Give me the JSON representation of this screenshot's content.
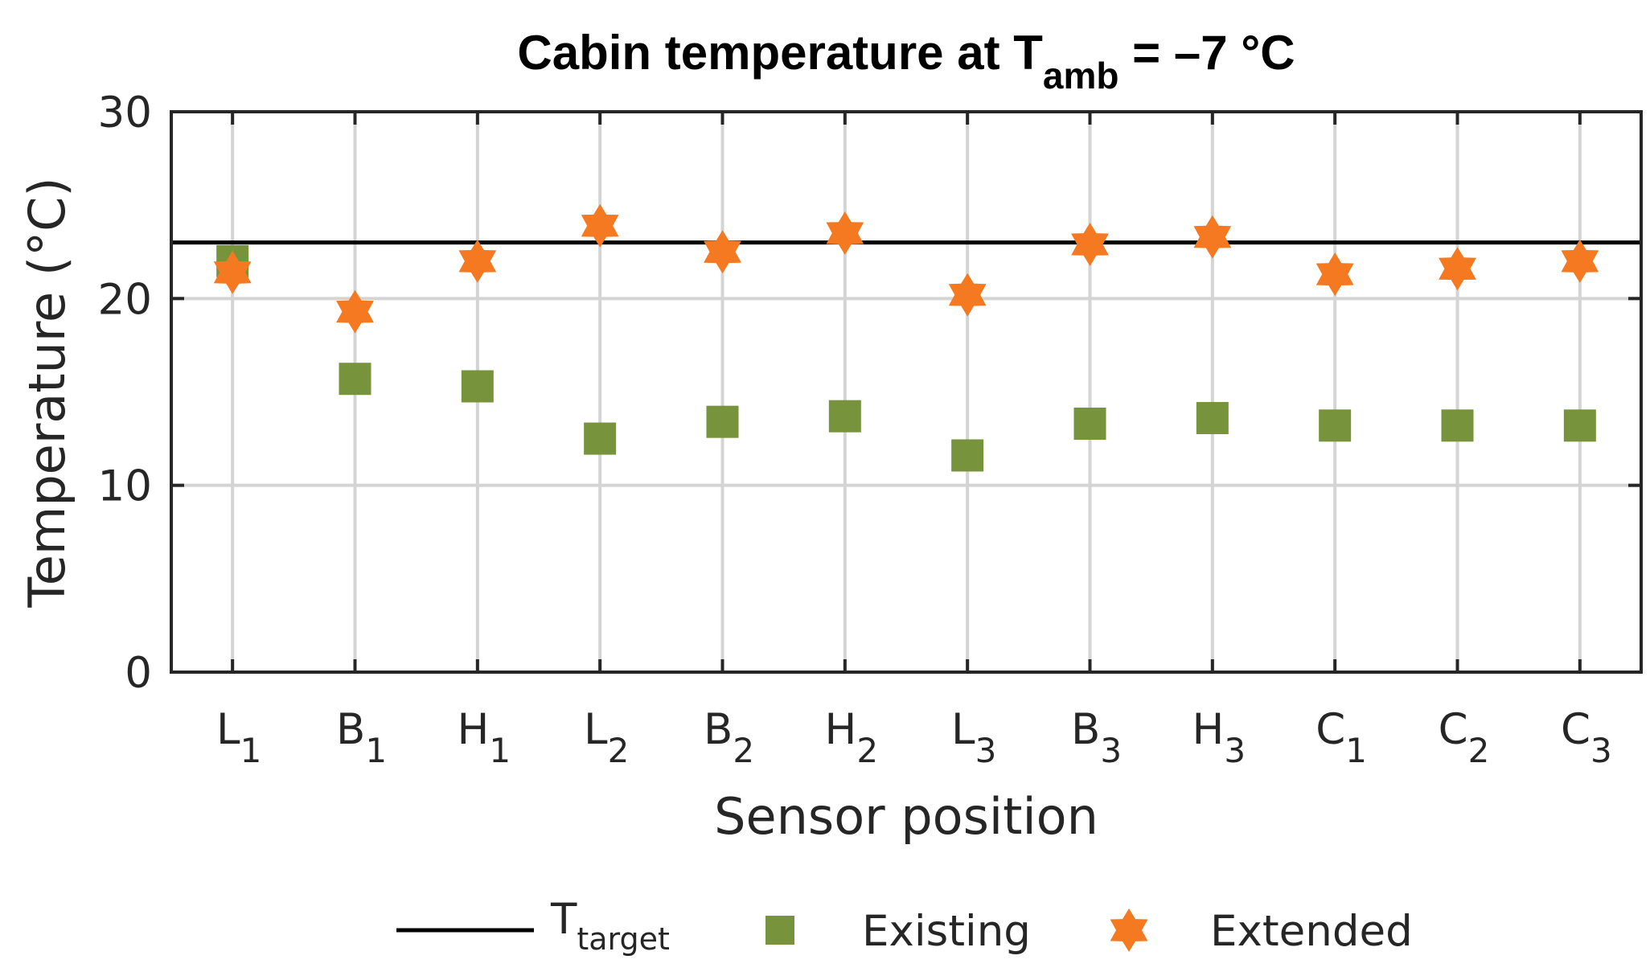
{
  "chart_data": {
    "type": "scatter",
    "title": "Cabin temperature at T",
    "title_subscript": "amb",
    "title_suffix": " = –7 °C",
    "xlabel": "Sensor position",
    "ylabel": "Temperature (°C)",
    "ylim": [
      0,
      30
    ],
    "yticks": [
      0,
      10,
      20,
      30
    ],
    "grid": true,
    "legend_position": "bottom-outside",
    "categories": [
      {
        "base": "L",
        "sub": "1"
      },
      {
        "base": "B",
        "sub": "1"
      },
      {
        "base": "H",
        "sub": "1"
      },
      {
        "base": "L",
        "sub": "2"
      },
      {
        "base": "B",
        "sub": "2"
      },
      {
        "base": "H",
        "sub": "2"
      },
      {
        "base": "L",
        "sub": "3"
      },
      {
        "base": "B",
        "sub": "3"
      },
      {
        "base": "H",
        "sub": "3"
      },
      {
        "base": "C",
        "sub": "1"
      },
      {
        "base": "C",
        "sub": "2"
      },
      {
        "base": "C",
        "sub": "3"
      }
    ],
    "reference_line": {
      "label_base": "T",
      "label_sub": "target",
      "value": 23,
      "color": "#000000"
    },
    "series": [
      {
        "name": "Existing",
        "marker": "square",
        "color": "#77933c",
        "values": [
          22.0,
          15.7,
          15.3,
          12.5,
          13.4,
          13.7,
          11.6,
          13.3,
          13.6,
          13.2,
          13.2,
          13.2
        ]
      },
      {
        "name": "Extended",
        "marker": "hexagram",
        "color": "#f47920",
        "values": [
          21.4,
          19.3,
          22.0,
          23.9,
          22.5,
          23.5,
          20.2,
          22.9,
          23.3,
          21.3,
          21.6,
          22.0
        ]
      }
    ]
  }
}
